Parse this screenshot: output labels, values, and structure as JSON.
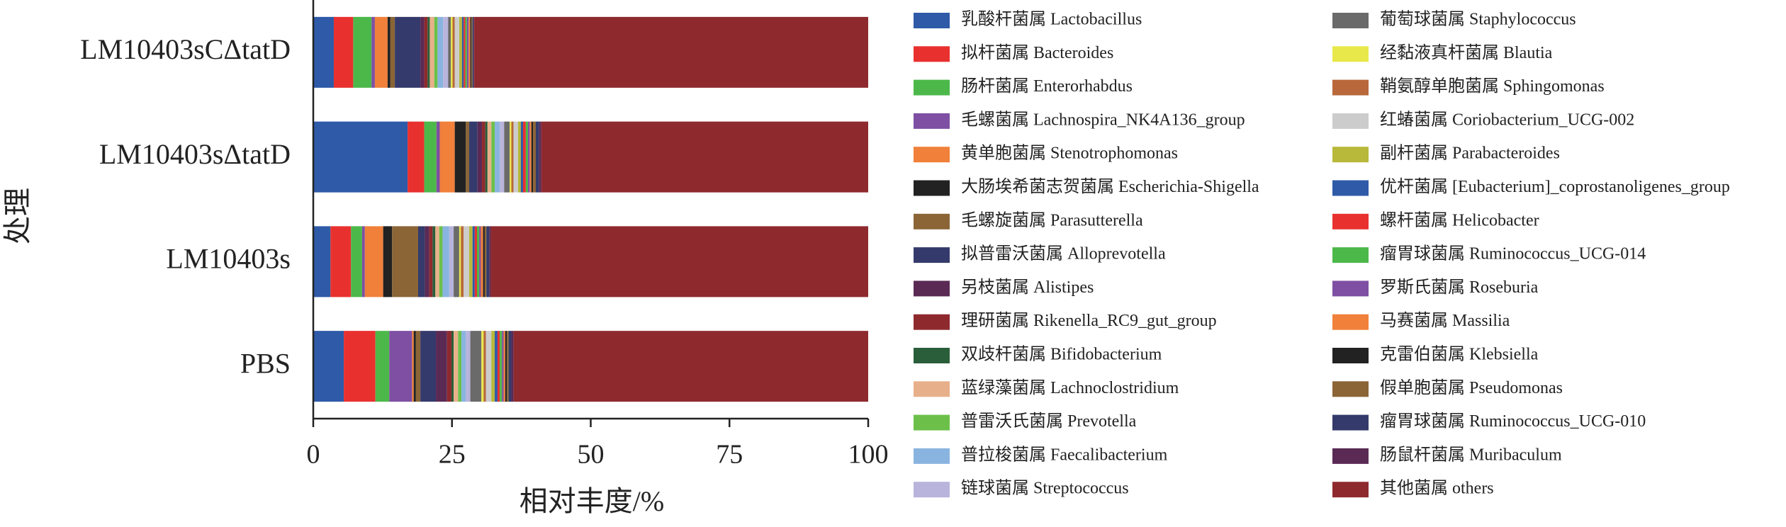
{
  "chart_data": {
    "type": "stacked-barh",
    "x_label": "相对丰度/%",
    "y_label": "处理",
    "categories": [
      "LM10403sCΔtatD",
      "LM10403sΔtatD",
      "LM10403s",
      "PBS"
    ],
    "xlim": [
      0,
      100
    ],
    "xticks": [
      0,
      25,
      50,
      75,
      100
    ],
    "legend": "right",
    "series": [
      {
        "name": "乳酸杆菌属 Lactobacillus",
        "color": "#2e5aa8",
        "values": [
          3.7,
          17,
          3.1,
          5.5
        ]
      },
      {
        "name": "拟杆菌属 Bacteroides",
        "color": "#e8312f",
        "values": [
          3.5,
          3,
          3.7,
          5.7
        ]
      },
      {
        "name": "肠杆菌属 Enterorhabdus",
        "color": "#4cb84a",
        "values": [
          3.3,
          2.2,
          2.0,
          2.5
        ]
      },
      {
        "name": "毛螺菌属 Lachnospira_NK4A136_group",
        "color": "#7e4fa3",
        "values": [
          0.6,
          0.6,
          0.5,
          4.1
        ]
      },
      {
        "name": "黄单胞菌属 Stenotrophomonas",
        "color": "#f0803a",
        "values": [
          2.3,
          2.7,
          3.3,
          0.3
        ]
      },
      {
        "name": "大肠埃希菌志贺菌属 Escherichia-Shigella",
        "color": "#222222",
        "values": [
          0.5,
          2.0,
          1.6,
          0.4
        ]
      },
      {
        "name": "毛螺旋菌属 Parasutterella",
        "color": "#8b6536",
        "values": [
          0.8,
          0.6,
          4.7,
          0.8
        ]
      },
      {
        "name": "拟普雷沃菌属 Alloprevotella",
        "color": "#343a6b",
        "values": [
          4.6,
          1.5,
          1.2,
          2.8
        ]
      },
      {
        "name": "另枝菌属 Alistipes",
        "color": "#5a2a55",
        "values": [
          0.7,
          0.8,
          0.8,
          2.0
        ]
      },
      {
        "name": "理研菌属 Rikenella_RC9_gut_group",
        "color": "#8e2a2e",
        "values": [
          0.6,
          0.6,
          0.6,
          0.8
        ]
      },
      {
        "name": "双歧杆菌属 Bifidobacterium",
        "color": "#2a5e3a",
        "values": [
          0.4,
          0.4,
          0.5,
          0.4
        ]
      },
      {
        "name": "蓝绿藻菌属 Lachnoclostridium",
        "color": "#e8b08a",
        "values": [
          0.8,
          0.7,
          0.7,
          0.8
        ]
      },
      {
        "name": "普雷沃氏菌属 Prevotella",
        "color": "#6cc04a",
        "values": [
          0.6,
          0.6,
          0.6,
          0.6
        ]
      },
      {
        "name": "普拉梭菌属 Faecalibacterium",
        "color": "#8ab4e0",
        "values": [
          1.0,
          0.9,
          1.2,
          0.8
        ]
      },
      {
        "name": "链球菌属 Streptococcus",
        "color": "#b8b4dc",
        "values": [
          0.9,
          0.8,
          0.8,
          0.8
        ]
      },
      {
        "name": "葡萄球菌属 Staphylococcus",
        "color": "#6a6a6a",
        "values": [
          0.5,
          1.0,
          1.0,
          2.0
        ]
      },
      {
        "name": "经黏液真杆菌属 Blautia",
        "color": "#e8e84a",
        "values": [
          0.3,
          0.3,
          0.3,
          0.4
        ]
      },
      {
        "name": "鞘氨醇单胞菌属 Sphingomonas",
        "color": "#b8683a",
        "values": [
          0.4,
          0.4,
          0.5,
          0.4
        ]
      },
      {
        "name": "红蝽菌属 Coriobacterium_UCG-002",
        "color": "#cccccc",
        "values": [
          0.8,
          0.8,
          1.0,
          1.0
        ]
      },
      {
        "name": "副杆菌属 Parabacteroides",
        "color": "#b8b83a",
        "values": [
          0.5,
          0.5,
          0.6,
          0.6
        ]
      },
      {
        "name": "优杆菌属 [Eubacterium]_coprostanoligenes_group",
        "color": "#2e5aa8",
        "values": [
          0.3,
          0.4,
          0.4,
          0.5
        ]
      },
      {
        "name": "螺杆菌属 Helicobacter",
        "color": "#e8312f",
        "values": [
          0.3,
          0.5,
          0.4,
          0.4
        ]
      },
      {
        "name": "瘤胃球菌属 Ruminococcus_UCG-014",
        "color": "#4cb84a",
        "values": [
          0.3,
          0.4,
          0.4,
          0.4
        ]
      },
      {
        "name": "罗斯氏菌属 Roseburia",
        "color": "#7e4fa3",
        "values": [
          0.3,
          0.3,
          0.3,
          0.3
        ]
      },
      {
        "name": "马赛菌属 Massilia",
        "color": "#f0803a",
        "values": [
          0.3,
          0.3,
          0.4,
          0.3
        ]
      },
      {
        "name": "克雷伯菌属 Klebsiella",
        "color": "#222222",
        "values": [
          0.2,
          0.3,
          0.3,
          0.3
        ]
      },
      {
        "name": "假单胞菌属 Pseudomonas",
        "color": "#8b6536",
        "values": [
          0.2,
          0.5,
          0.3,
          0.3
        ]
      },
      {
        "name": "瘤胃球菌属 Ruminococcus_UCG-010",
        "color": "#343a6b",
        "values": [
          0.2,
          0.6,
          0.5,
          0.5
        ]
      },
      {
        "name": "肠鼠杆菌属 Muribaculum",
        "color": "#5a2a55",
        "values": [
          0.1,
          0.4,
          0.3,
          0.4
        ]
      },
      {
        "name": "其他菌属 others",
        "color": "#8e2a2e",
        "values": [
          71.0,
          58.9,
          68.0,
          63.9
        ]
      }
    ]
  }
}
